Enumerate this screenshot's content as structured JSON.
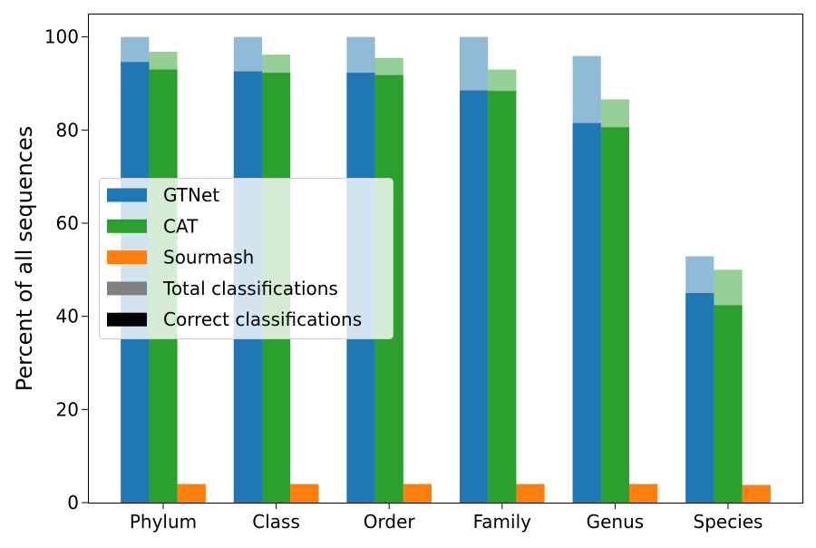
{
  "chart_data": {
    "type": "bar",
    "title": "",
    "xlabel": "",
    "ylabel": "Percent of all sequences",
    "ylim": [
      0,
      105
    ],
    "yticks": [
      0,
      20,
      40,
      60,
      80,
      100
    ],
    "grid": false,
    "categories": [
      "Phylum",
      "Class",
      "Order",
      "Family",
      "Genus",
      "Species"
    ],
    "series": [
      {
        "name": "GTNet",
        "color": "#1f77b4",
        "total": [
          100,
          100,
          100,
          100,
          95.9,
          52.9
        ],
        "correct": [
          94.6,
          92.6,
          92.3,
          88.5,
          81.5,
          45.0
        ]
      },
      {
        "name": "CAT",
        "color": "#2ca02c",
        "total": [
          96.8,
          96.2,
          95.5,
          93.0,
          86.6,
          50.0
        ],
        "correct": [
          93.0,
          92.3,
          91.8,
          88.4,
          80.6,
          42.4
        ]
      },
      {
        "name": "Sourmash",
        "color": "#ff7f0e",
        "total": [
          4.0,
          4.0,
          4.0,
          4.0,
          4.0,
          3.8
        ],
        "correct": [
          4.0,
          4.0,
          4.0,
          4.0,
          4.0,
          3.8
        ]
      }
    ],
    "legend": {
      "position": "center-left",
      "entries": [
        {
          "label": "GTNet",
          "color": "#1f77b4"
        },
        {
          "label": "CAT",
          "color": "#2ca02c"
        },
        {
          "label": "Sourmash",
          "color": "#ff7f0e"
        },
        {
          "label": "Total classifications",
          "color": "#808080"
        },
        {
          "label": "Correct classifications",
          "color": "#000000"
        }
      ]
    }
  }
}
